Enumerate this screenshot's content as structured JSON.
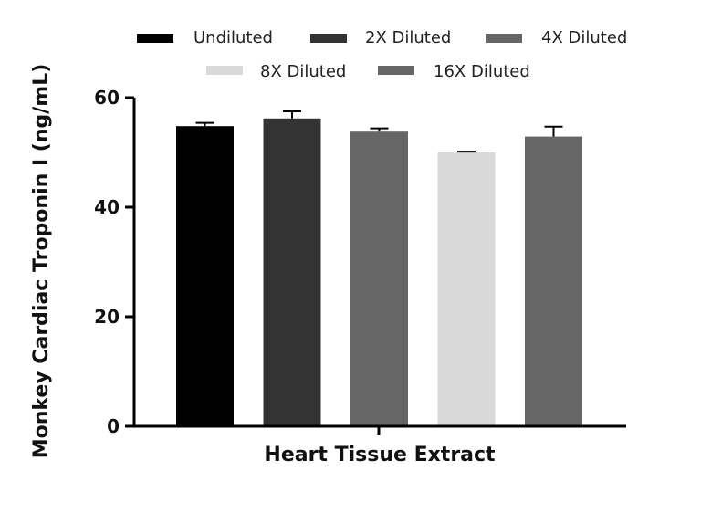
{
  "chart_data": {
    "type": "bar",
    "title": "",
    "xlabel": "Heart Tissue Extract",
    "ylabel": "Monkey Cardiac Troponin I (ng/mL)",
    "ylim": [
      0,
      60
    ],
    "yticks": [
      "0",
      "20",
      "40",
      "60"
    ],
    "legend_position": "top",
    "grid": false,
    "series": [
      {
        "name": "Undiluted",
        "value": 54.8,
        "error": 0.6,
        "color": "#000000"
      },
      {
        "name": "2X Diluted",
        "value": 56.2,
        "error": 1.3,
        "color": "#333333"
      },
      {
        "name": "4X Diluted",
        "value": 53.8,
        "error": 0.6,
        "color": "#666666"
      },
      {
        "name": "8X Diluted",
        "value": 50.0,
        "error": 0.15,
        "color": "#d9d9d9"
      },
      {
        "name": "16X Diluted",
        "value": 52.9,
        "error": 1.8,
        "color": "#666666"
      }
    ]
  }
}
